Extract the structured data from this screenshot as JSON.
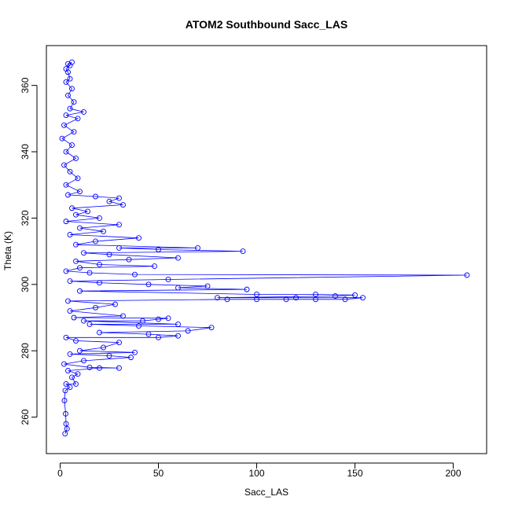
{
  "chart_data": {
    "type": "scatter",
    "title": "ATOM2 Southbound Sacc_LAS",
    "xlabel": "Sacc_LAS",
    "ylabel": "Theta (K)",
    "xlim": [
      -7,
      217
    ],
    "ylim": [
      249,
      372
    ],
    "xticks": [
      0,
      50,
      100,
      150,
      200
    ],
    "yticks": [
      260,
      280,
      300,
      320,
      340,
      360
    ],
    "grid": false,
    "legend": "none",
    "marker": "open-circle",
    "connect_points": true,
    "series_color": "#0000ff",
    "series": [
      {
        "points": [
          [
            2.5,
            255
          ],
          [
            3.5,
            256.5
          ],
          [
            3,
            258
          ],
          [
            2.8,
            261
          ],
          [
            2.2,
            265
          ],
          [
            2.6,
            268
          ],
          [
            3,
            270
          ],
          [
            5,
            269
          ],
          [
            8,
            270
          ],
          [
            6,
            272
          ],
          [
            9,
            273
          ],
          [
            4,
            274
          ],
          [
            20,
            274.8
          ],
          [
            30,
            274.8
          ],
          [
            15,
            275
          ],
          [
            2,
            276
          ],
          [
            12,
            277
          ],
          [
            36,
            278
          ],
          [
            25,
            278.5
          ],
          [
            5,
            279
          ],
          [
            38,
            279.5
          ],
          [
            10,
            280
          ],
          [
            22,
            281
          ],
          [
            30,
            282.5
          ],
          [
            8,
            283
          ],
          [
            3,
            284
          ],
          [
            50,
            284
          ],
          [
            60,
            284.5
          ],
          [
            45,
            285
          ],
          [
            20,
            285.5
          ],
          [
            65,
            286
          ],
          [
            77,
            287
          ],
          [
            40,
            287.5
          ],
          [
            15,
            288
          ],
          [
            60,
            288
          ],
          [
            12,
            289
          ],
          [
            42,
            289
          ],
          [
            50,
            289.5
          ],
          [
            55,
            289.8
          ],
          [
            7,
            290
          ],
          [
            32,
            290.5
          ],
          [
            5,
            292
          ],
          [
            18,
            293
          ],
          [
            28,
            294
          ],
          [
            4,
            295
          ],
          [
            85,
            295.5
          ],
          [
            100,
            295.5
          ],
          [
            115,
            295.5
          ],
          [
            130,
            295.5
          ],
          [
            145,
            295.5
          ],
          [
            154,
            296
          ],
          [
            120,
            296
          ],
          [
            80,
            296
          ],
          [
            140,
            296.5
          ],
          [
            150,
            296.8
          ],
          [
            130,
            297
          ],
          [
            100,
            297
          ],
          [
            95,
            298.5
          ],
          [
            10,
            298
          ],
          [
            60,
            299
          ],
          [
            75,
            299.5
          ],
          [
            45,
            300
          ],
          [
            20,
            300.5
          ],
          [
            5,
            301
          ],
          [
            55,
            301.5
          ],
          [
            207,
            302.8
          ],
          [
            38,
            303
          ],
          [
            15,
            303.5
          ],
          [
            3,
            304
          ],
          [
            10,
            305
          ],
          [
            48,
            305.5
          ],
          [
            20,
            306
          ],
          [
            8,
            307
          ],
          [
            35,
            307.5
          ],
          [
            60,
            308
          ],
          [
            25,
            309
          ],
          [
            12,
            309.5
          ],
          [
            93,
            310
          ],
          [
            50,
            310.5
          ],
          [
            30,
            311
          ],
          [
            70,
            311
          ],
          [
            8,
            312
          ],
          [
            18,
            313
          ],
          [
            40,
            314
          ],
          [
            5,
            315
          ],
          [
            22,
            316
          ],
          [
            10,
            317
          ],
          [
            30,
            318
          ],
          [
            3,
            319
          ],
          [
            20,
            320
          ],
          [
            8,
            321
          ],
          [
            14,
            322
          ],
          [
            6,
            323
          ],
          [
            32,
            324
          ],
          [
            25,
            325
          ],
          [
            30,
            326
          ],
          [
            18,
            326.5
          ],
          [
            4,
            327
          ],
          [
            10,
            328
          ],
          [
            3,
            330
          ],
          [
            9,
            332
          ],
          [
            5,
            334
          ],
          [
            2,
            336
          ],
          [
            8,
            338
          ],
          [
            3,
            340
          ],
          [
            6,
            342
          ],
          [
            1,
            344
          ],
          [
            7,
            346
          ],
          [
            2,
            348
          ],
          [
            9,
            350
          ],
          [
            12,
            352
          ],
          [
            3,
            351
          ],
          [
            5,
            353
          ],
          [
            7,
            355
          ],
          [
            4,
            357
          ],
          [
            6,
            359
          ],
          [
            3,
            361
          ],
          [
            5,
            362
          ],
          [
            4,
            364
          ],
          [
            5,
            366
          ],
          [
            6,
            367
          ],
          [
            4,
            366.5
          ],
          [
            3,
            365
          ]
        ]
      }
    ]
  }
}
